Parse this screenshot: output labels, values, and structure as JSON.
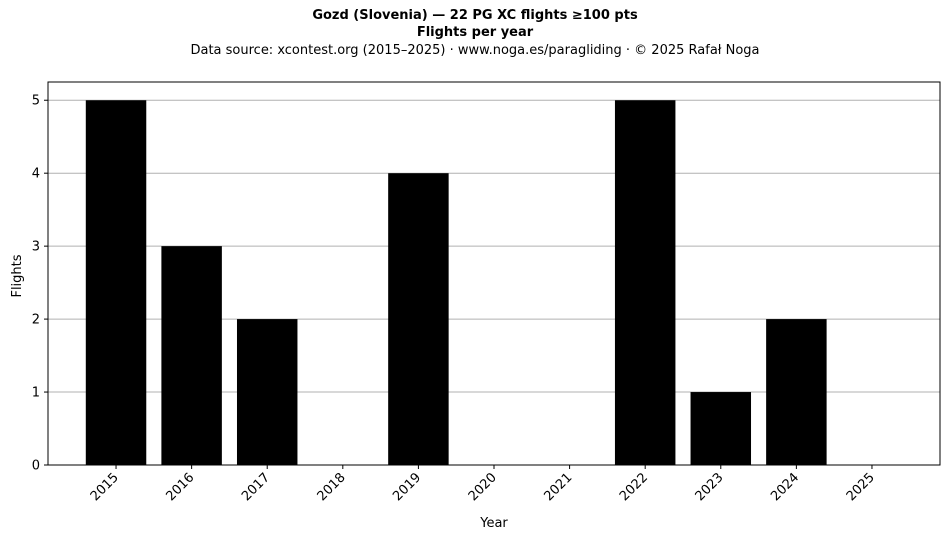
{
  "header": {
    "title": "Gozd (Slovenia)  —  22 PG XC flights ≥100 pts",
    "subtitle": "Flights per year",
    "source": "Data source: xcontest.org (2015–2025)  ·  www.noga.es/paragliding  ·  © 2025 Rafał Noga"
  },
  "chart_data": {
    "type": "bar",
    "title": "Gozd (Slovenia)  —  22 PG XC flights ≥100 pts",
    "subtitle": "Flights per year",
    "xlabel": "Year",
    "ylabel": "Flights",
    "categories": [
      "2015",
      "2016",
      "2017",
      "2018",
      "2019",
      "2020",
      "2021",
      "2022",
      "2023",
      "2024",
      "2025"
    ],
    "values": [
      5,
      3,
      2,
      0,
      4,
      0,
      0,
      5,
      1,
      2,
      0
    ],
    "ylim": [
      0,
      5.25
    ],
    "yticks": [
      0,
      1,
      2,
      3,
      4,
      5
    ],
    "grid": "y-axis",
    "bar_color": "#000000",
    "grid_color": "#b0b0b0"
  }
}
